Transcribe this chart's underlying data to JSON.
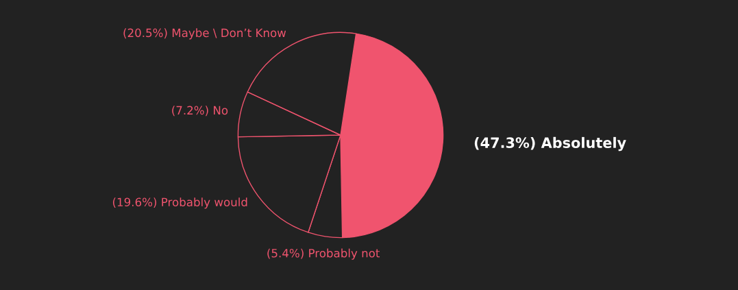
{
  "chart_data": {
    "type": "pie",
    "categories": [
      "Absolutely",
      "Probably not",
      "Probably would",
      "No",
      "Maybe \\ Don’t Know"
    ],
    "values": [
      47.3,
      5.4,
      19.6,
      7.2,
      20.5
    ],
    "value_labels": [
      "(47.3%)",
      "(5.4%)",
      "(19.6%)",
      "(7.2%)",
      "(20.5%)"
    ],
    "colors": [
      "#f0546e",
      "#222222",
      "#222222",
      "#222222",
      "#222222"
    ],
    "legend": false
  }
}
